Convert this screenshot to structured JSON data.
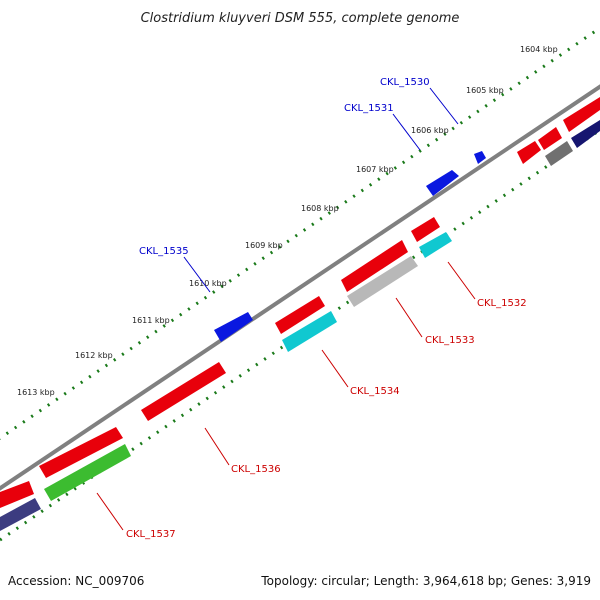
{
  "title": "Clostridium kluyveri DSM 555, complete genome",
  "footer": {
    "accession": "Accession: NC_009706",
    "summary": "Topology: circular; Length: 3,964,618 bp; Genes: 3,919"
  },
  "ticks": [
    "1604 kbp",
    "1605 kbp",
    "1606 kbp",
    "1607 kbp",
    "1608 kbp",
    "1609 kbp",
    "1610 kbp",
    "1611 kbp",
    "1612 kbp",
    "1613 kbp"
  ],
  "gene_labels": {
    "forward": [
      "CKL_1530",
      "CKL_1531",
      "CKL_1535"
    ],
    "reverse": [
      "CKL_1532",
      "CKL_1533",
      "CKL_1534",
      "CKL_1536",
      "CKL_1537"
    ]
  },
  "colors": {
    "forward_label": "#0000cc",
    "reverse_label": "#cc0000",
    "backbone": "#808080",
    "tick_dots": "#1a7a1a",
    "red": "#e8000b",
    "blue": "#0a18e0",
    "cyan": "#10c8d0",
    "silver": "#b8b8b8",
    "green": "#3cbc30",
    "gray": "#707070",
    "navy": "#161670",
    "slate": "#3c3c80"
  }
}
